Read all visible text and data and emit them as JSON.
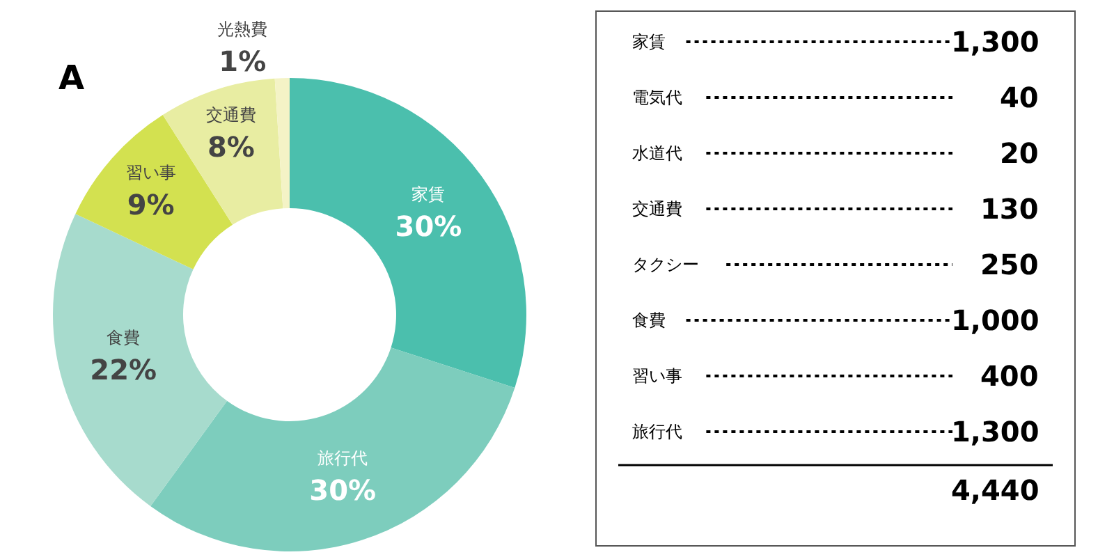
{
  "chart_data": [
    {
      "type": "donut",
      "annotations": [
        "A"
      ],
      "categories": [
        "家賃",
        "旅行代",
        "食費",
        "習い事",
        "交通費",
        "光熱費"
      ],
      "values": [
        30,
        30,
        22,
        9,
        8,
        1
      ],
      "value_labels": [
        "30%",
        "30%",
        "22%",
        "9%",
        "8%",
        "1%"
      ],
      "colors": [
        "#4bbfad",
        "#7dcdbd",
        "#a7dbcd",
        "#d3e150",
        "#e8eda2",
        "#f4f3c6"
      ]
    },
    {
      "type": "other",
      "categories": [
        "家賃",
        "電気代",
        "水道代",
        "交通費",
        "タクシー",
        "食費",
        "習い事",
        "旅行代"
      ],
      "values": [
        1300,
        40,
        20,
        130,
        250,
        1000,
        400,
        1300
      ],
      "value_labels": [
        "1,300",
        "40",
        "20",
        "130",
        "250",
        "1,000",
        "400",
        "1,300"
      ],
      "annotations": [
        "4,440"
      ]
    }
  ]
}
